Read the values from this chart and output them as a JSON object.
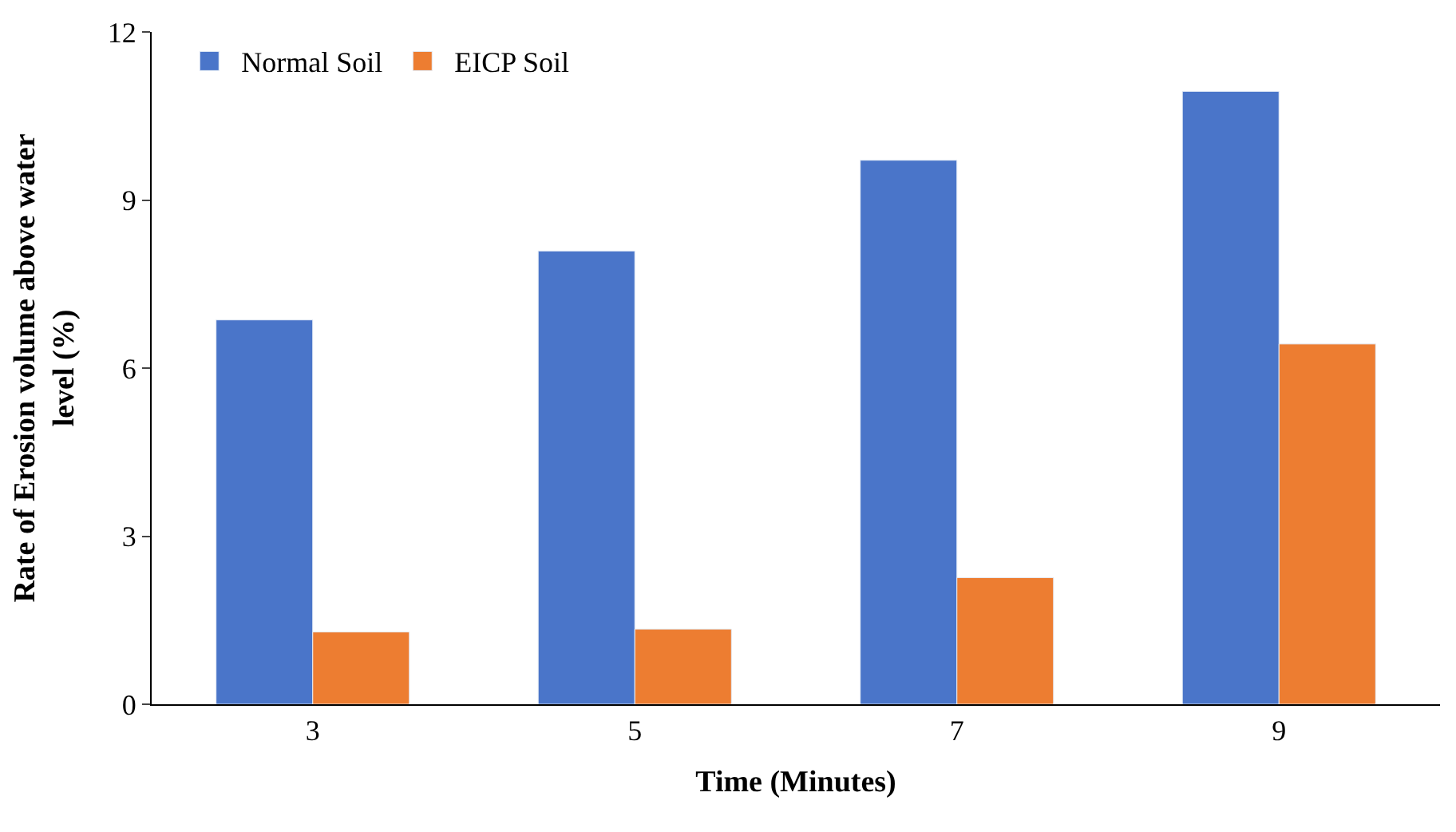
{
  "chart_data": {
    "type": "bar",
    "xlabel": "Time (Minutes)",
    "ylabel": "Rate of Erosion volume above water level (%)",
    "categories": [
      "3",
      "5",
      "7",
      "9"
    ],
    "series": [
      {
        "name": "Normal Soil",
        "color": "#4a75c9",
        "values": [
          6.86,
          8.09,
          9.71,
          10.94
        ]
      },
      {
        "name": "EICP Soil",
        "color": "#ed7d31",
        "values": [
          1.29,
          1.34,
          2.26,
          6.43
        ]
      }
    ],
    "ylim": [
      0,
      12
    ],
    "yticks": [
      0,
      3,
      6,
      9,
      12
    ],
    "legend": "top left"
  }
}
